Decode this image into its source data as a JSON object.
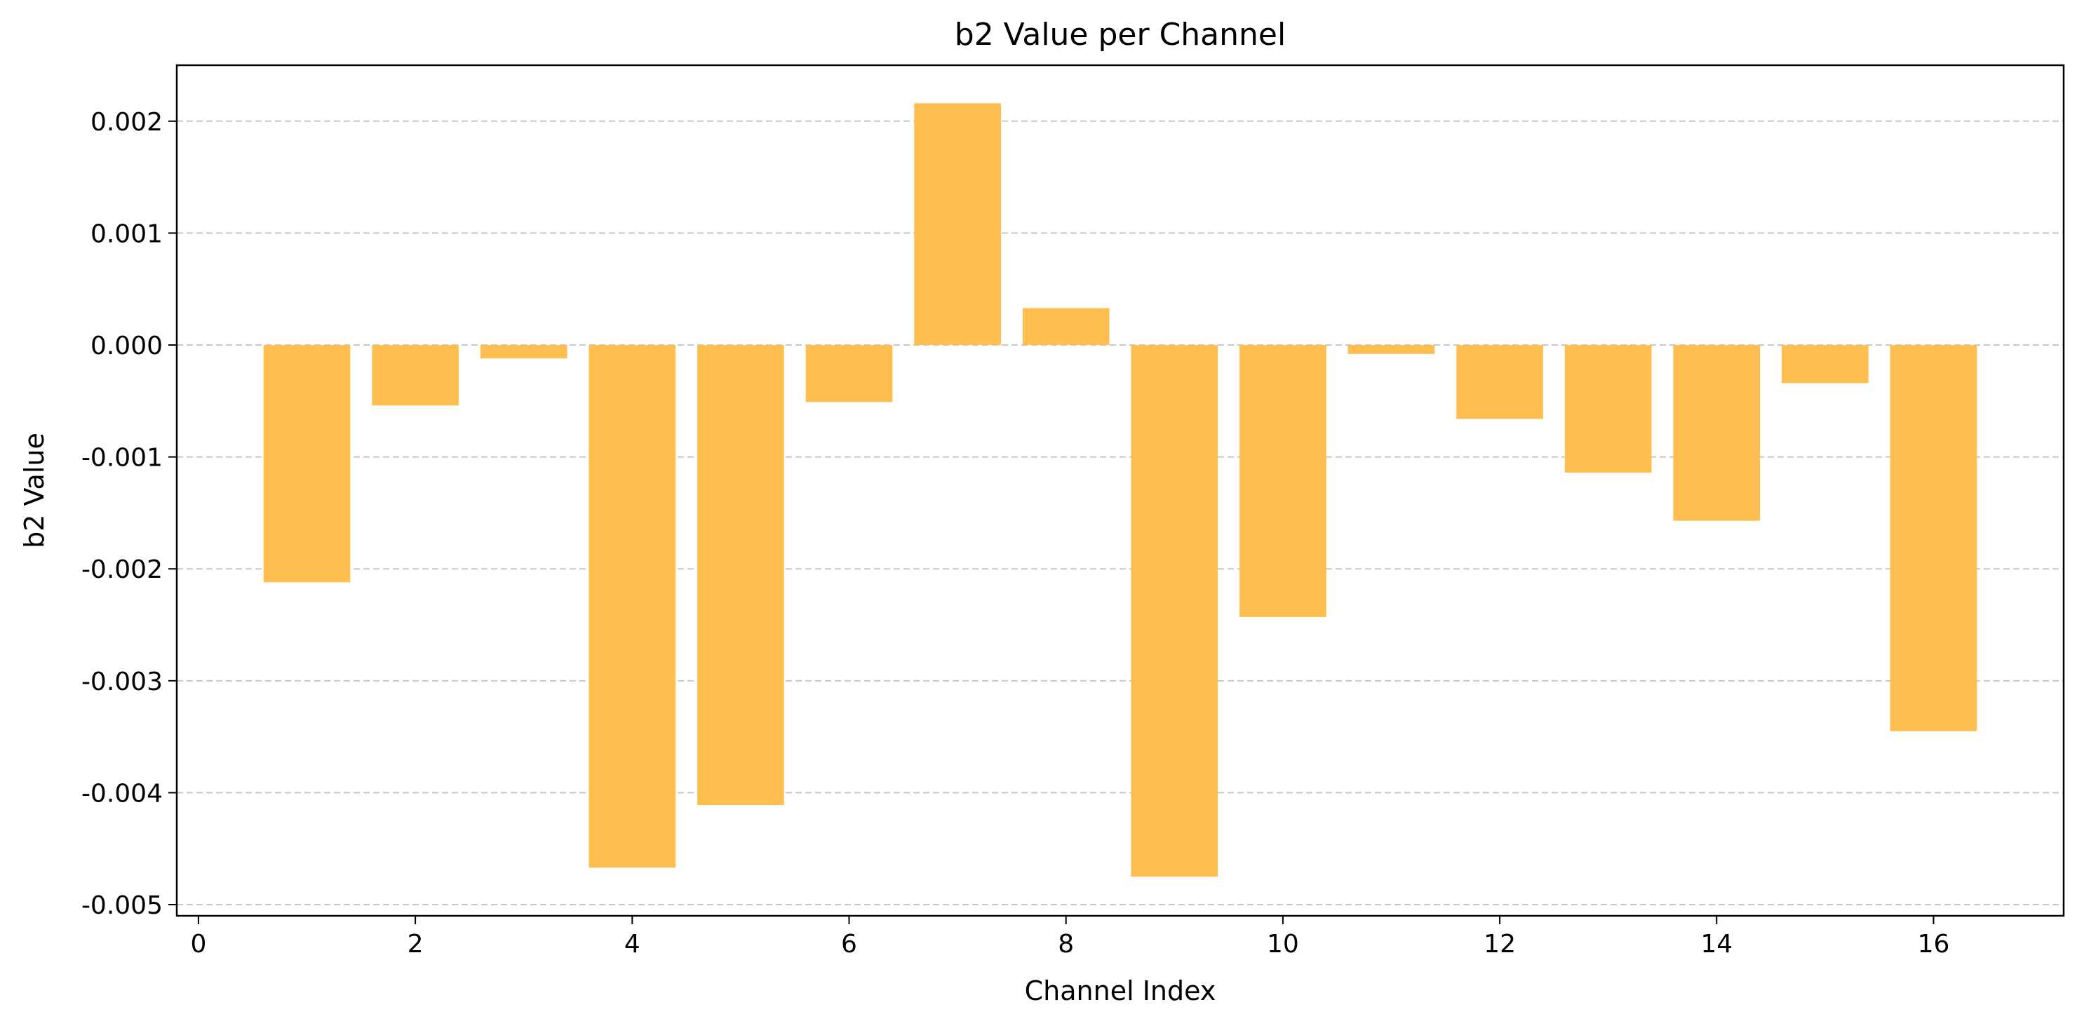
{
  "chart_data": {
    "type": "bar",
    "title": "b2 Value per Channel",
    "xlabel": "Channel Index",
    "ylabel": "b2 Value",
    "categories": [
      1,
      2,
      3,
      4,
      5,
      6,
      7,
      8,
      9,
      10,
      11,
      12,
      13,
      14,
      15,
      16
    ],
    "values": [
      -0.00212,
      -0.00054,
      -0.00012,
      -0.00467,
      -0.00411,
      -0.00051,
      0.00216,
      0.00033,
      -0.00475,
      -0.00243,
      -8e-05,
      -0.00066,
      -0.00114,
      -0.00157,
      -0.00034,
      -0.00345
    ],
    "xlim": [
      -0.2,
      17.2
    ],
    "ylim": [
      -0.0051,
      0.0025
    ],
    "xticks": [
      0,
      2,
      4,
      6,
      8,
      10,
      12,
      14,
      16
    ],
    "xtick_labels": [
      "0",
      "2",
      "4",
      "6",
      "8",
      "10",
      "12",
      "14",
      "16"
    ],
    "yticks": [
      0.002,
      0.001,
      0.0,
      -0.001,
      -0.002,
      -0.003,
      -0.004,
      -0.005
    ],
    "ytick_labels": [
      "0.002",
      "0.001",
      "0.000",
      "-0.001",
      "-0.002",
      "-0.003",
      "-0.004",
      "-0.005"
    ],
    "grid": "y-dashed",
    "bar_color": "#FFBF50",
    "grid_color": "#C8C8C8"
  }
}
